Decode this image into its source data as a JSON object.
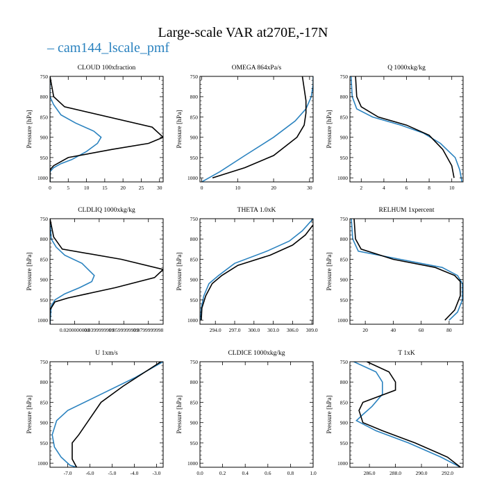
{
  "title": "Large-scale VAR at270E,-17N",
  "legend": {
    "label": "cam144_lscale_pmf",
    "dash": "–",
    "color": "#2a82bf"
  },
  "colors": {
    "model": "#2a82bf",
    "reference": "#000000"
  },
  "chart_data": [
    {
      "type": "line",
      "title": "CLOUD  100xfraction",
      "ylabel": "Pressure [hPa]",
      "ylim": [
        1010,
        750
      ],
      "yticks": [
        750,
        800,
        850,
        900,
        950,
        1000
      ],
      "xlim": [
        0,
        31
      ],
      "xticks": [
        0,
        5,
        10,
        15,
        20,
        25,
        30
      ],
      "xticklabels": [
        "0",
        "5",
        "10",
        "15",
        "20",
        "25",
        "30"
      ],
      "series": [
        {
          "name": "cam144_lscale_pmf",
          "x": [
            0,
            0,
            1,
            3,
            7,
            12,
            14,
            13,
            10,
            6,
            3,
            1,
            0,
            0
          ],
          "y": [
            750,
            800,
            820,
            845,
            865,
            885,
            900,
            915,
            935,
            955,
            965,
            975,
            985,
            1010
          ]
        },
        {
          "x": [
            0,
            1,
            4,
            28,
            31,
            27,
            17,
            5,
            1,
            0,
            0
          ],
          "y": [
            750,
            800,
            825,
            875,
            900,
            915,
            930,
            950,
            970,
            980,
            1010
          ]
        }
      ]
    },
    {
      "type": "line",
      "title": "OMEGA  864xPa/s",
      "ylabel": "Pressure [hPa]",
      "ylim": [
        1010,
        750
      ],
      "yticks": [
        750,
        800,
        850,
        900,
        950,
        1000
      ],
      "xlim": [
        -0.5,
        31
      ],
      "xticks": [
        0,
        10,
        20,
        30
      ],
      "xticklabels": [
        "0",
        "10",
        "20",
        "30"
      ],
      "series": [
        {
          "name": "cam144_lscale_pmf",
          "x": [
            31,
            31,
            30.5,
            29,
            26,
            20,
            12,
            5,
            0
          ],
          "y": [
            750,
            770,
            800,
            830,
            860,
            900,
            945,
            985,
            1010
          ]
        },
        {
          "x": [
            28,
            28.5,
            29,
            29,
            28.5,
            26.5,
            20,
            12,
            3
          ],
          "y": [
            750,
            780,
            810,
            840,
            870,
            900,
            945,
            975,
            1000
          ]
        }
      ]
    },
    {
      "type": "line",
      "title": "Q  1000xkg/kg",
      "ylabel": "Pressure [hPa]",
      "ylim": [
        1010,
        750
      ],
      "yticks": [
        750,
        800,
        850,
        900,
        950,
        1000
      ],
      "xlim": [
        1,
        11
      ],
      "xticks": [
        2,
        4,
        6,
        8,
        10
      ],
      "xticklabels": [
        "2",
        "4",
        "6",
        "8",
        "10"
      ],
      "series": [
        {
          "name": "cam144_lscale_pmf",
          "x": [
            1.1,
            1.2,
            1.6,
            3,
            5.5,
            7.5,
            9,
            10.3,
            10.7,
            10.9
          ],
          "y": [
            750,
            800,
            830,
            850,
            870,
            890,
            915,
            950,
            980,
            1010
          ]
        },
        {
          "x": [
            1.5,
            1.6,
            2.0,
            3.5,
            6,
            8,
            9.2,
            10,
            10.2
          ],
          "y": [
            750,
            800,
            825,
            850,
            870,
            895,
            930,
            970,
            1000
          ]
        }
      ]
    },
    {
      "type": "line",
      "title": "CLDLIQ  1000xkg/kg",
      "ylabel": "Pressure [hPa]",
      "ylim": [
        1010,
        750
      ],
      "yticks": [
        750,
        800,
        850,
        900,
        950,
        1000
      ],
      "xlim": [
        0,
        0.092
      ],
      "xticks": [
        0.02,
        0.04,
        0.06,
        0.08
      ],
      "xticklabels": [
        "0.0200000000",
        "0.0399999999",
        "0.0599999999",
        "0.0799999998"
      ],
      "series": [
        {
          "name": "cam144_lscale_pmf",
          "x": [
            0,
            0.001,
            0.005,
            0.012,
            0.026,
            0.036,
            0.034,
            0.024,
            0.012,
            0.004,
            0.001,
            0
          ],
          "y": [
            750,
            800,
            820,
            840,
            860,
            890,
            905,
            920,
            935,
            950,
            965,
            1010
          ]
        },
        {
          "x": [
            0,
            0.003,
            0.01,
            0.058,
            0.092,
            0.085,
            0.053,
            0.015,
            0.004,
            0,
            0
          ],
          "y": [
            750,
            795,
            825,
            850,
            875,
            895,
            920,
            945,
            955,
            975,
            1010
          ]
        }
      ]
    },
    {
      "type": "line",
      "title": "THETA  1.0xK",
      "ylabel": "Pressure [hPa]",
      "ylim": [
        1010,
        750
      ],
      "yticks": [
        750,
        800,
        850,
        900,
        950,
        1000
      ],
      "xlim": [
        291.6,
        309.2
      ],
      "xticks": [
        294,
        297,
        300,
        303,
        306,
        309
      ],
      "xticklabels": [
        "294.0",
        "297.0",
        "300.0",
        "303.0",
        "306.0",
        "309.0"
      ],
      "series": [
        {
          "name": "cam144_lscale_pmf",
          "x": [
            309.2,
            307.5,
            305.5,
            302,
            297,
            294.5,
            293,
            292.2,
            291.8,
            291.7
          ],
          "y": [
            750,
            780,
            805,
            830,
            860,
            890,
            910,
            940,
            970,
            1000
          ]
        },
        {
          "x": [
            309.2,
            308,
            306,
            302.5,
            297.5,
            295,
            293.5,
            292.5,
            291.9,
            291.8
          ],
          "y": [
            765,
            790,
            815,
            840,
            865,
            890,
            910,
            940,
            970,
            1000
          ]
        }
      ]
    },
    {
      "type": "line",
      "title": "RELHUM  1xpercent",
      "ylabel": "Pressure [hPa]",
      "ylim": [
        1010,
        750
      ],
      "yticks": [
        750,
        800,
        850,
        900,
        950,
        1000
      ],
      "xlim": [
        9,
        90
      ],
      "xticks": [
        20,
        40,
        60,
        80
      ],
      "xticklabels": [
        "20",
        "40",
        "60",
        "80"
      ],
      "series": [
        {
          "name": "cam144_lscale_pmf",
          "x": [
            10,
            11,
            15,
            45,
            75,
            86,
            89.5,
            89.5,
            86,
            80
          ],
          "y": [
            750,
            800,
            830,
            850,
            870,
            890,
            910,
            950,
            980,
            1000
          ]
        },
        {
          "x": [
            12,
            13,
            17,
            40,
            70,
            84,
            88,
            88,
            84,
            77
          ],
          "y": [
            750,
            800,
            825,
            850,
            870,
            890,
            905,
            940,
            975,
            1000
          ]
        }
      ]
    },
    {
      "type": "line",
      "title": "U  1xm/s",
      "ylabel": "Pressure [hPa]",
      "ylim": [
        1010,
        750
      ],
      "yticks": [
        750,
        800,
        850,
        900,
        950,
        1000
      ],
      "xlim": [
        -7.8,
        -2.7
      ],
      "xticks": [
        -7,
        -6,
        -5,
        -4,
        -3
      ],
      "xticklabels": [
        "-7.0",
        "-6.0",
        "-5.0",
        "-4.0",
        "-3.0"
      ],
      "series": [
        {
          "name": "cam144_lscale_pmf",
          "x": [
            -2.7,
            -4.0,
            -5.5,
            -7.0,
            -7.5,
            -7.7,
            -7.6,
            -7.3,
            -6.9,
            -6.6
          ],
          "y": [
            750,
            790,
            830,
            870,
            895,
            930,
            960,
            985,
            1005,
            1010
          ]
        },
        {
          "x": [
            -2.8,
            -4.5,
            -5.5,
            -6.0,
            -6.5,
            -6.8,
            -6.8,
            -6.6
          ],
          "y": [
            750,
            810,
            850,
            890,
            930,
            950,
            990,
            1010
          ]
        }
      ]
    },
    {
      "type": "line",
      "title": "CLDICE  1000xkg/kg",
      "ylabel": "Pressure [hPa]",
      "ylim": [
        1010,
        750
      ],
      "yticks": [
        750,
        800,
        850,
        900,
        950,
        1000
      ],
      "xlim": [
        0,
        1.0
      ],
      "xticks": [
        0,
        0.2,
        0.4,
        0.6,
        0.8,
        1.0
      ],
      "xticklabels": [
        "0.0",
        "0.2",
        "0.4",
        "0.6",
        "0.8",
        "1.0"
      ],
      "series": []
    },
    {
      "type": "line",
      "title": "T  1xK",
      "ylabel": "Pressure [hPa]",
      "ylim": [
        1010,
        750
      ],
      "yticks": [
        750,
        800,
        850,
        900,
        950,
        1000
      ],
      "xlim": [
        284.5,
        293.2
      ],
      "xticks": [
        286,
        288,
        290,
        292
      ],
      "xticklabels": [
        "286.0",
        "288.0",
        "290.0",
        "292.0"
      ],
      "series": [
        {
          "name": "cam144_lscale_pmf",
          "x": [
            284.8,
            286.5,
            287.0,
            287.0,
            286.2,
            285.5,
            285.0,
            286.5,
            289,
            291.5,
            293
          ],
          "y": [
            750,
            775,
            800,
            830,
            860,
            880,
            895,
            920,
            950,
            985,
            1010
          ]
        },
        {
          "x": [
            285.8,
            287.5,
            288.0,
            288.0,
            285.5,
            285.2,
            285.5,
            287,
            289.5,
            292,
            293
          ],
          "y": [
            750,
            775,
            800,
            820,
            850,
            870,
            900,
            920,
            950,
            985,
            1010
          ]
        }
      ]
    }
  ]
}
